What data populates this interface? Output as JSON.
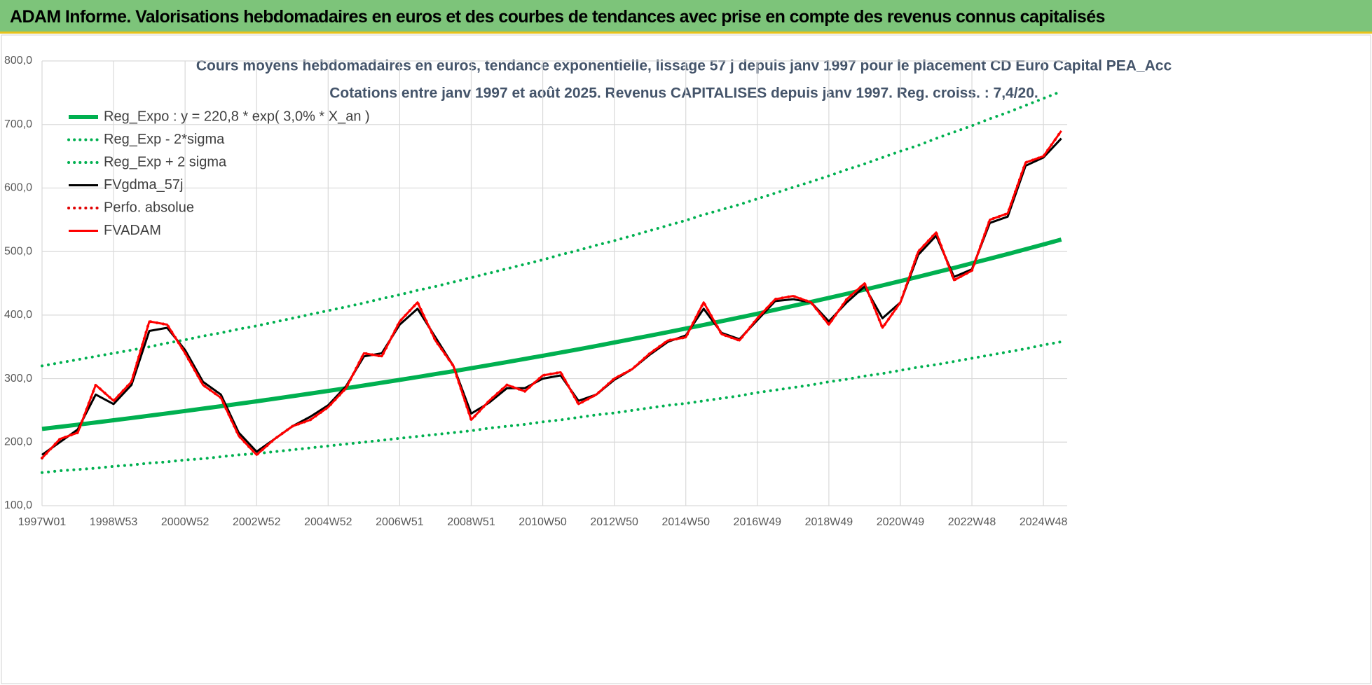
{
  "header": {
    "title": "ADAM Informe. Valorisations hebdomadaires en euros et des courbes de tendances avec prise en compte des revenus connus capitalisés"
  },
  "chart_data": {
    "type": "line",
    "title": "Cours moyens hebdomadaires en euros, tendance exponentielle, lissage 57 j depuis janv 1997 pour le placement CD Euro Capital PEA_Acc",
    "subtitle": "Cotations entre janv 1997 et août 2025. Revenus CAPITALISES depuis janv 1997. Reg. croiss. : 7,4/20.",
    "categories": [
      "1997W01",
      null,
      null,
      null,
      "1998W53",
      null,
      null,
      null,
      "2000W52",
      null,
      null,
      null,
      "2002W52",
      null,
      null,
      null,
      "2004W52",
      null,
      null,
      null,
      "2006W51",
      null,
      null,
      null,
      "2008W51",
      null,
      null,
      null,
      "2010W50",
      null,
      null,
      null,
      "2012W50",
      null,
      null,
      null,
      "2014W50",
      null,
      null,
      null,
      "2016W49",
      null,
      null,
      null,
      "2018W49",
      null,
      null,
      null,
      "2020W49",
      null,
      null,
      null,
      "2022W48",
      null,
      null,
      null,
      "2024W48",
      null
    ],
    "ylim": [
      100,
      800
    ],
    "yticks": [
      {
        "value": 100,
        "label": "100,0"
      },
      {
        "value": 200,
        "label": "200,0"
      },
      {
        "value": 300,
        "label": "300,0"
      },
      {
        "value": 400,
        "label": "400,0"
      },
      {
        "value": 500,
        "label": "500,0"
      },
      {
        "value": 600,
        "label": "600,0"
      },
      {
        "value": 700,
        "label": "700,0"
      },
      {
        "value": 800,
        "label": "800,0"
      }
    ],
    "grid": true,
    "legend": "upper left",
    "series": [
      {
        "name": "Reg_Expo : y = 220,8 * exp( 3,0% *  X_an )",
        "color": "#00b050",
        "line_style": "solid",
        "values": [
          220.8,
          224.1,
          227.5,
          231.0,
          234.5,
          238.0,
          241.6,
          245.3,
          249.0,
          252.8,
          256.5,
          260.4,
          264.3,
          268.3,
          272.4,
          276.5,
          280.7,
          284.9,
          289.2,
          293.6,
          298.0,
          302.5,
          307.1,
          311.7,
          316.4,
          321.2,
          326.1,
          331.0,
          336.0,
          341.1,
          346.2,
          351.5,
          356.8,
          362.2,
          367.6,
          373.2,
          378.8,
          384.5,
          390.4,
          396.2,
          402.2,
          408.3,
          414.5,
          420.7,
          427.1,
          433.5,
          440.1,
          446.7,
          453.5,
          460.3,
          467.3,
          474.3,
          481.5,
          488.8,
          496.1,
          503.6,
          511.2,
          518.9
        ]
      },
      {
        "name": "Reg_Exp - 2*sigma",
        "color": "#00b050",
        "line_style": "dotted",
        "values": [
          152,
          155,
          157,
          159,
          162,
          164,
          167,
          169,
          172,
          174,
          177,
          180,
          182,
          185,
          188,
          191,
          194,
          197,
          200,
          203,
          206,
          209,
          212,
          215,
          218,
          222,
          225,
          228,
          232,
          235,
          239,
          243,
          246,
          250,
          254,
          258,
          261,
          265,
          269,
          273,
          278,
          282,
          286,
          290,
          295,
          299,
          304,
          308,
          313,
          318,
          322,
          327,
          332,
          337,
          342,
          347,
          353,
          358
        ]
      },
      {
        "name": "Reg_Exp + 2 sigma",
        "color": "#00b050",
        "line_style": "dotted",
        "values": [
          320,
          325,
          330,
          335,
          340,
          345,
          350,
          356,
          361,
          367,
          372,
          378,
          383,
          389,
          395,
          401,
          407,
          413,
          419,
          426,
          432,
          439,
          445,
          452,
          459,
          466,
          473,
          480,
          487,
          495,
          502,
          510,
          517,
          525,
          533,
          541,
          549,
          558,
          566,
          574,
          583,
          592,
          601,
          610,
          619,
          629,
          638,
          648,
          658,
          667,
          678,
          688,
          698,
          709,
          719,
          730,
          741,
          752
        ]
      },
      {
        "name": "FVgdma_57j",
        "color": "#000000",
        "line_style": "solid",
        "values": [
          180,
          200,
          220,
          275,
          260,
          290,
          375,
          380,
          345,
          295,
          275,
          215,
          185,
          205,
          225,
          240,
          258,
          288,
          335,
          340,
          385,
          410,
          365,
          320,
          245,
          262,
          285,
          285,
          300,
          305,
          265,
          275,
          298,
          315,
          338,
          358,
          368,
          410,
          372,
          362,
          392,
          422,
          425,
          420,
          390,
          420,
          445,
          395,
          420,
          495,
          525,
          460,
          472,
          545,
          555,
          635,
          648,
          678
        ]
      },
      {
        "name": "Perfo. absolue",
        "color": "#e00000",
        "line_style": "dotted",
        "values": [
          175,
          205,
          215,
          290,
          265,
          295,
          390,
          385,
          340,
          290,
          270,
          210,
          180,
          205,
          225,
          235,
          255,
          285,
          340,
          335,
          390,
          420,
          360,
          320,
          235,
          265,
          290,
          280,
          305,
          310,
          260,
          275,
          300,
          315,
          340,
          360,
          365,
          420,
          370,
          360,
          395,
          425,
          430,
          420,
          385,
          425,
          450,
          380,
          420,
          500,
          530,
          455,
          470,
          550,
          560,
          640,
          650,
          690
        ]
      },
      {
        "name": "FVADAM",
        "color": "#ff0000",
        "line_style": "solid",
        "values": [
          175,
          205,
          215,
          290,
          265,
          295,
          390,
          385,
          340,
          290,
          270,
          210,
          180,
          205,
          225,
          235,
          255,
          285,
          340,
          335,
          390,
          420,
          360,
          320,
          235,
          265,
          290,
          280,
          305,
          310,
          260,
          275,
          300,
          315,
          340,
          360,
          365,
          420,
          370,
          360,
          395,
          425,
          430,
          420,
          385,
          425,
          450,
          380,
          420,
          500,
          530,
          455,
          470,
          550,
          560,
          640,
          650,
          690
        ]
      }
    ]
  }
}
